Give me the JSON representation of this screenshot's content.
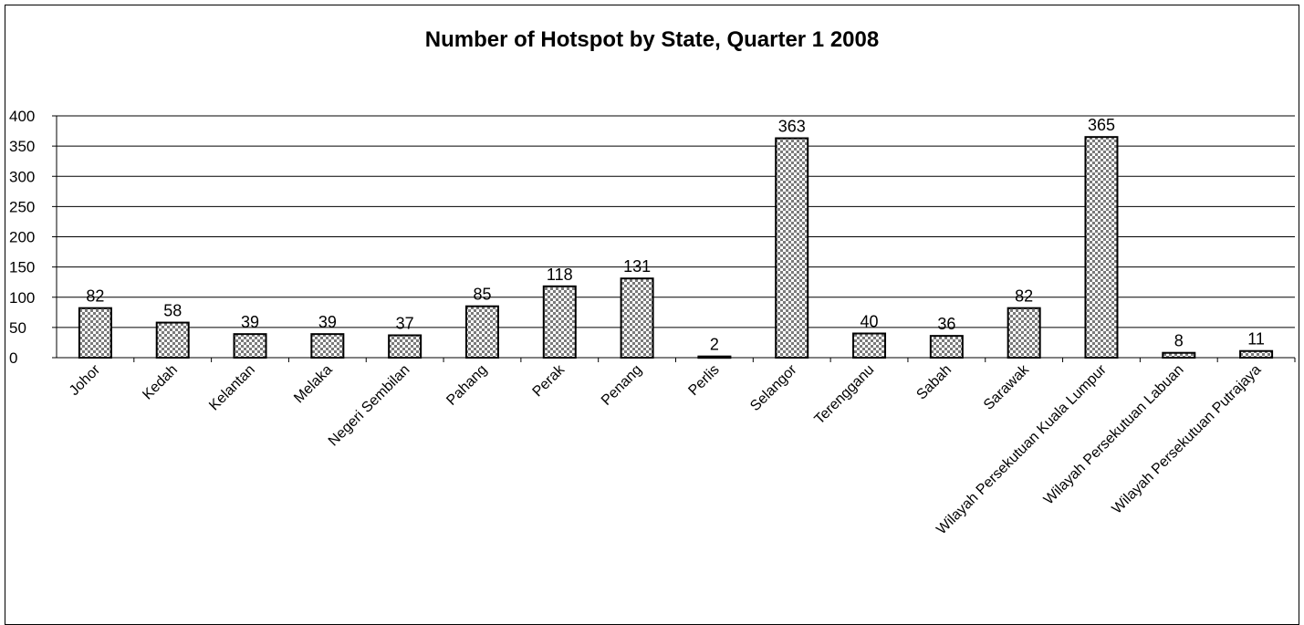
{
  "chart_data": {
    "type": "bar",
    "title": "Number of Hotspot by State, Quarter 1 2008",
    "xlabel": "",
    "ylabel": "",
    "ylim": [
      0,
      400
    ],
    "yticks": [
      0,
      50,
      100,
      150,
      200,
      250,
      300,
      350,
      400
    ],
    "grid": true,
    "legend": "none",
    "bar_fill": "checkered",
    "colors": {
      "bar_pattern_dark": "#808080",
      "bar_outline": "#000000",
      "grid": "#000000"
    },
    "categories": [
      "Johor",
      "Kedah",
      "Kelantan",
      "Melaka",
      "Negeri Sembilan",
      "Pahang",
      "Perak",
      "Penang",
      "Perlis",
      "Selangor",
      "Terengganu",
      "Sabah",
      "Sarawak",
      "Wilayah Persekutuan Kuala Lumpur",
      "Wilayah Persekutuan Labuan",
      "Wilayah Persekutuan Putrajaya"
    ],
    "values": [
      82,
      58,
      39,
      39,
      37,
      85,
      118,
      131,
      2,
      363,
      40,
      36,
      82,
      365,
      8,
      11
    ]
  }
}
